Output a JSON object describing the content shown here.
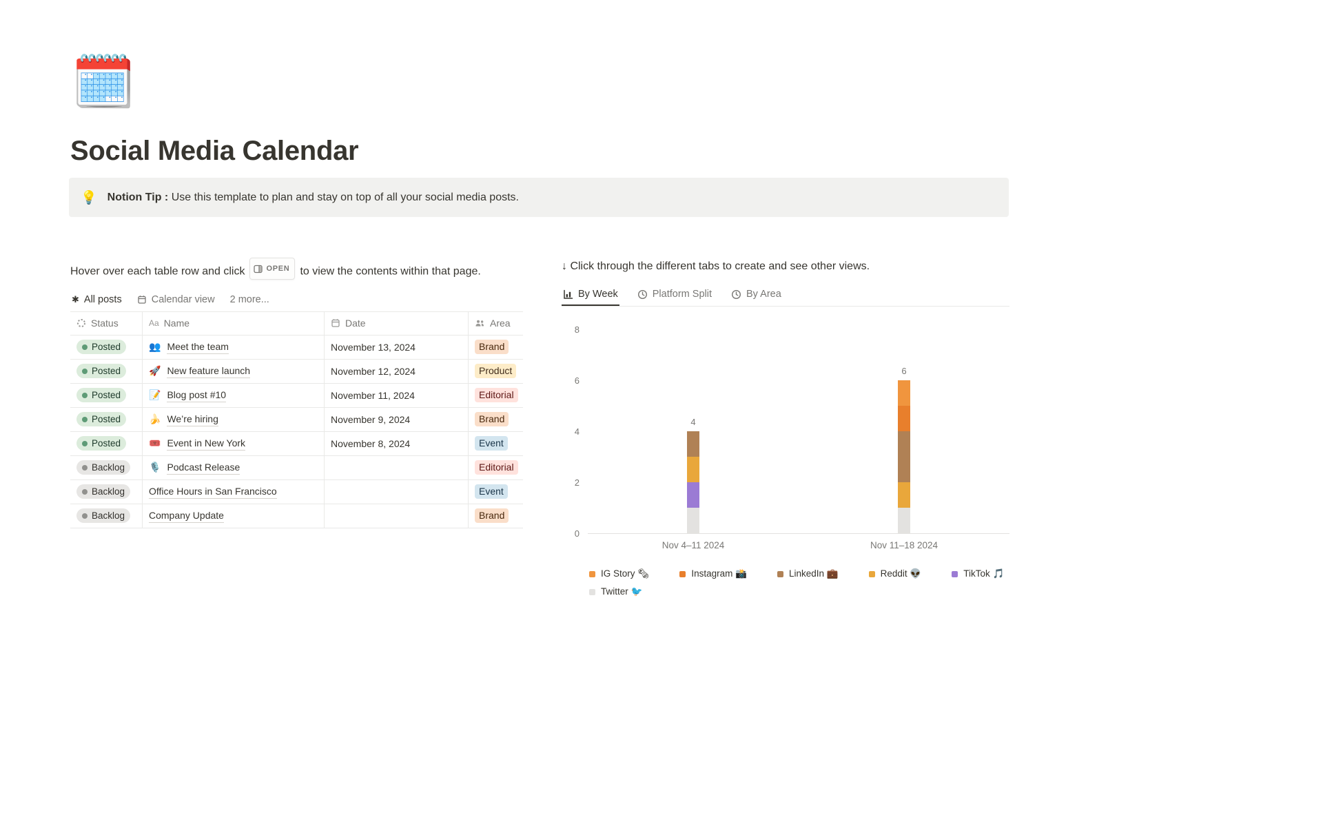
{
  "page": {
    "icon": "🗓️",
    "title": "Social Media Calendar",
    "callout_icon": "💡",
    "callout_bold": "Notion Tip :",
    "callout_text": "Use this template to plan and stay on top of all your social media posts."
  },
  "left": {
    "hint_before": "Hover over each table row and click",
    "open_label": "OPEN",
    "hint_after": "to view the contents within that page.",
    "tabs": [
      {
        "label": "All posts"
      },
      {
        "label": "Calendar view"
      },
      {
        "label": "2 more..."
      }
    ],
    "table": {
      "headers": [
        "Status",
        "Name",
        "Date",
        "Area"
      ],
      "rows": [
        {
          "status": "Posted",
          "status_key": "posted",
          "icon": "👥",
          "name": "Meet the team",
          "date": "November 13, 2024",
          "area": "Brand",
          "area_key": "brand"
        },
        {
          "status": "Posted",
          "status_key": "posted",
          "icon": "🚀",
          "name": "New feature launch",
          "date": "November 12, 2024",
          "area": "Product",
          "area_key": "product"
        },
        {
          "status": "Posted",
          "status_key": "posted",
          "icon": "📝",
          "name": "Blog post #10",
          "date": "November 11, 2024",
          "area": "Editorial",
          "area_key": "editorial"
        },
        {
          "status": "Posted",
          "status_key": "posted",
          "icon": "🍌",
          "name": "We’re hiring",
          "date": "November 9, 2024",
          "area": "Brand",
          "area_key": "brand"
        },
        {
          "status": "Posted",
          "status_key": "posted",
          "icon": "🎟️",
          "name": "Event in New York",
          "date": "November 8, 2024",
          "area": "Event",
          "area_key": "event"
        },
        {
          "status": "Backlog",
          "status_key": "backlog",
          "icon": "🎙️",
          "name": "Podcast Release",
          "date": "",
          "area": "Editorial",
          "area_key": "editorial"
        },
        {
          "status": "Backlog",
          "status_key": "backlog",
          "icon": "",
          "name": "Office Hours in San Francisco",
          "date": "",
          "area": "Event",
          "area_key": "event"
        },
        {
          "status": "Backlog",
          "status_key": "backlog",
          "icon": "",
          "name": "Company Update",
          "date": "",
          "area": "Brand",
          "area_key": "brand"
        }
      ]
    }
  },
  "right": {
    "hint": "↓ Click through the different tabs to create and see other views.",
    "tabs": [
      {
        "label": "By Week"
      },
      {
        "label": "Platform Split"
      },
      {
        "label": "By Area"
      }
    ],
    "chart_data": {
      "type": "bar",
      "stacked": true,
      "title": "By Week",
      "categories": [
        "Nov 4–11 2024",
        "Nov 11–18 2024"
      ],
      "series": [
        {
          "name": "IG Story 🗞",
          "color": "#F0953E",
          "values": [
            0,
            1
          ]
        },
        {
          "name": "Instagram 📸",
          "color": "#E87F2C",
          "values": [
            0,
            1
          ]
        },
        {
          "name": "LinkedIn 💼",
          "color": "#B08155",
          "values": [
            1,
            2
          ]
        },
        {
          "name": "Reddit 👽",
          "color": "#E9A73B",
          "values": [
            1,
            1
          ]
        },
        {
          "name": "TikTok 🎵",
          "color": "#9B7BD4",
          "values": [
            1,
            0
          ]
        },
        {
          "name": "Twitter 🐦",
          "color": "#E3E2E0",
          "values": [
            1,
            1
          ]
        }
      ],
      "bar_totals": [
        4,
        6
      ],
      "ylim": [
        0,
        8
      ],
      "yticks": [
        0,
        2,
        4,
        6,
        8
      ],
      "grid": false,
      "legend_position": "bottom"
    }
  }
}
